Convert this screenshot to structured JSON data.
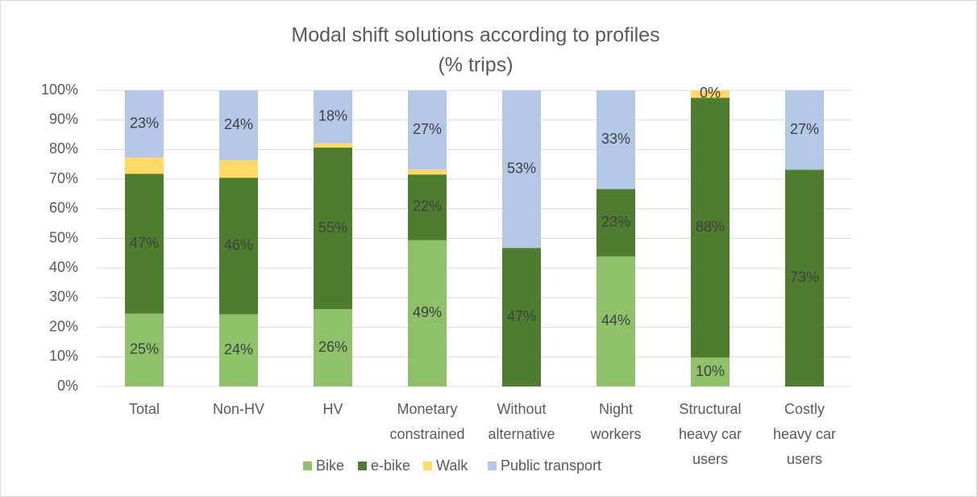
{
  "chart_data": {
    "type": "stacked-bar",
    "title": "Modal shift solutions according to profiles",
    "subtitle": "(% trips)",
    "categories": [
      [
        "Total"
      ],
      [
        "Non-HV"
      ],
      [
        "HV"
      ],
      [
        "Monetary",
        "constrained"
      ],
      [
        "Without",
        "alternative"
      ],
      [
        "Night",
        "workers"
      ],
      [
        "Structural",
        "heavy car",
        "users"
      ],
      [
        "Costly",
        "heavy car",
        "users"
      ]
    ],
    "series": [
      {
        "name": "Bike",
        "color": "#8ec16a",
        "values": [
          24.6,
          24.4,
          26.1,
          49.4,
          0,
          43.9,
          9.8,
          0
        ],
        "value_labels": [
          "25%",
          "24%",
          "26%",
          "49%",
          "0%",
          "44%",
          "10%",
          "0%"
        ]
      },
      {
        "name": "e-bike",
        "color": "#4e7d30",
        "values": [
          47.2,
          46.1,
          54.6,
          22.2,
          46.8,
          22.8,
          87.7,
          73.2
        ],
        "value_labels": [
          "47%",
          "46%",
          "55%",
          "22%",
          "47%",
          "23%",
          "88%",
          "73%"
        ]
      },
      {
        "name": "Walk",
        "color": "#ffd966",
        "values": [
          5.5,
          5.9,
          1.4,
          1.6,
          0,
          0,
          2.5,
          0
        ],
        "value_labels": [
          null,
          null,
          null,
          null,
          null,
          null,
          null,
          null
        ]
      },
      {
        "name": "Public transport",
        "color": "#b4c7e7",
        "values": [
          22.7,
          23.6,
          17.9,
          26.8,
          53.2,
          33.3,
          0,
          26.8
        ],
        "value_labels": [
          "23%",
          "24%",
          "18%",
          "27%",
          "53%",
          "33%",
          "0%",
          "27%"
        ]
      }
    ],
    "ylim": [
      0,
      100
    ],
    "yticks": [
      {
        "value": 0,
        "label": "0%"
      },
      {
        "value": 10,
        "label": "10%"
      },
      {
        "value": 20,
        "label": "20%"
      },
      {
        "value": 30,
        "label": "30%"
      },
      {
        "value": 40,
        "label": "40%"
      },
      {
        "value": 50,
        "label": "50%"
      },
      {
        "value": 60,
        "label": "60%"
      },
      {
        "value": 70,
        "label": "70%"
      },
      {
        "value": 80,
        "label": "80%"
      },
      {
        "value": 90,
        "label": "90%"
      },
      {
        "value": 100,
        "label": "100%"
      }
    ],
    "grid": true,
    "legend": "bottom"
  }
}
